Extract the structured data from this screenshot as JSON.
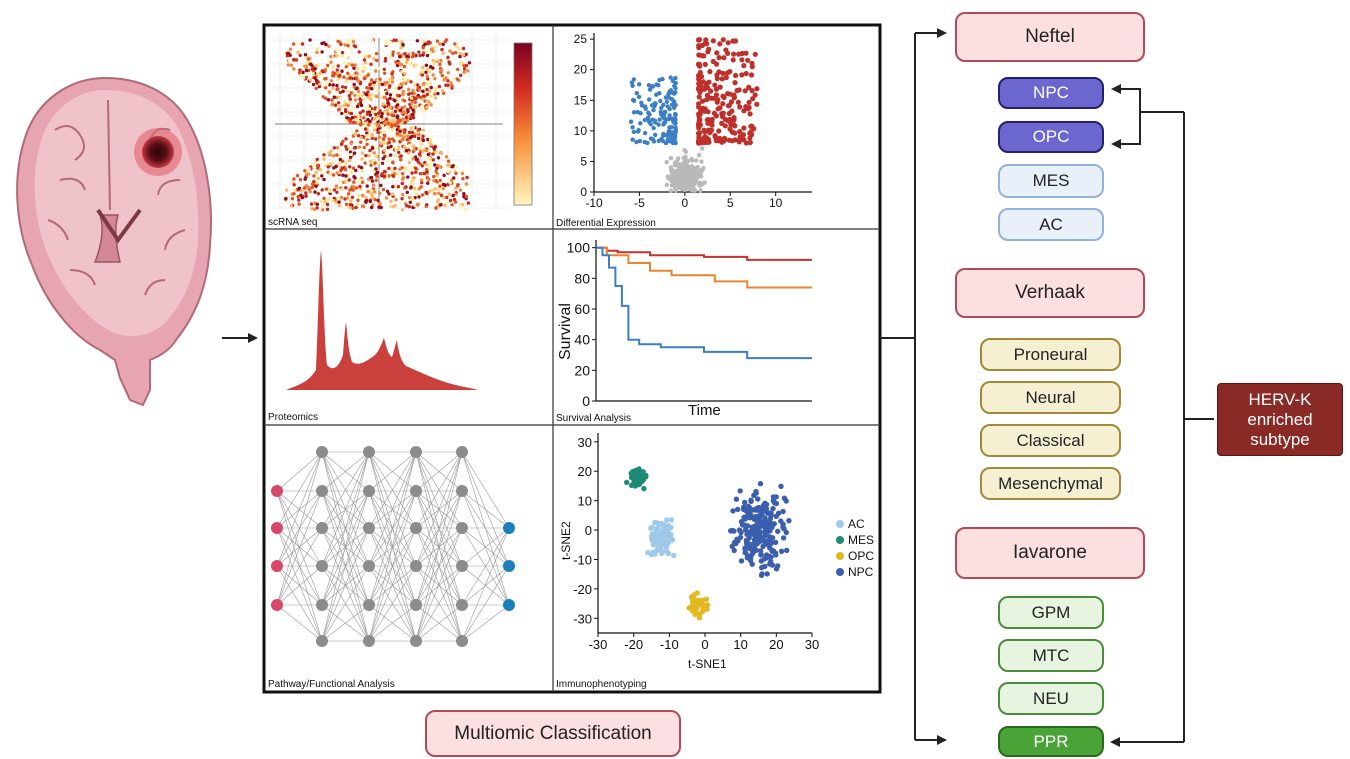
{
  "panels": {
    "scrna": "scRNA seq",
    "de": "Differential Expression",
    "proteomics": "Proteomics",
    "survival": "Survival Analysis",
    "pathway": "Pathway/Functional Analysis",
    "immuno": "Immunophenotyping"
  },
  "multiomic_label": "Multiomic Classification",
  "classifications": {
    "neftel": {
      "title": "Neftel",
      "subtypes": [
        "NPC",
        "OPC",
        "MES",
        "AC"
      ]
    },
    "verhaak": {
      "title": "Verhaak",
      "subtypes": [
        "Proneural",
        "Neural",
        "Classical",
        "Mesenchymal"
      ]
    },
    "iavarone": {
      "title": "Iavarone",
      "subtypes": [
        "GPM",
        "MTC",
        "NEU",
        "PPR"
      ]
    }
  },
  "herv": {
    "line1": "HERV-K",
    "line2": "enriched",
    "line3": "subtype"
  },
  "colors": {
    "up": "#c0302b",
    "down": "#3d7fc4",
    "ns": "#b9b9b9",
    "protein": "#c9403c",
    "curve_red": "#c8312b",
    "curve_orange": "#e8862f",
    "curve_blue": "#3a7fc4",
    "node_in": "#d6476a",
    "node_hidden": "#8c8c8c",
    "node_out": "#1a7fbb",
    "AC": "#9fc9ea",
    "MES": "#1d8a76",
    "OPC": "#e2b91f",
    "NPC": "#3b5fae"
  },
  "chart_data": [
    {
      "type": "scatter",
      "panel": "Differential Expression",
      "xlim": [
        -10,
        14
      ],
      "ylim": [
        0,
        26
      ],
      "xticks": [
        -10,
        -5,
        0,
        5,
        10
      ],
      "yticks": [
        0,
        5,
        10,
        15,
        20,
        25
      ],
      "series": [
        {
          "name": "",
          "points_approx": "upregulated: x 1.5 to 8, y 8 to 26"
        },
        {
          "name": "",
          "points_approx": "downregulated: x -6 to -1, y 8 to 19"
        },
        {
          "name": "",
          "points_approx": "not significant: x -4 to 4, y 0 to 9"
        }
      ]
    },
    {
      "type": "line",
      "panel": "Survival Analysis",
      "ylabel": "Survival",
      "xlabel": "Time",
      "ylim": [
        0,
        105
      ],
      "yticks": [
        0,
        20,
        40,
        60,
        80,
        100
      ],
      "series": [
        {
          "name": "",
          "x": [
            0,
            5,
            10,
            25,
            50,
            70,
            100
          ],
          "y": [
            100,
            98,
            97,
            95,
            94,
            92,
            92
          ]
        },
        {
          "name": "",
          "x": [
            0,
            5,
            15,
            25,
            35,
            55,
            70,
            100
          ],
          "y": [
            100,
            95,
            90,
            85,
            82,
            78,
            74,
            74
          ]
        },
        {
          "name": "",
          "x": [
            0,
            3,
            6,
            9,
            12,
            15,
            20,
            30,
            50,
            70,
            100
          ],
          "y": [
            100,
            95,
            87,
            75,
            62,
            40,
            37,
            35,
            32,
            28,
            28
          ]
        }
      ]
    },
    {
      "type": "scatter",
      "panel": "Immunophenotyping",
      "xlabel": "t-SNE1",
      "ylabel": "t-SNE2",
      "xlim": [
        -30,
        30
      ],
      "ylim": [
        -35,
        33
      ],
      "xticks": [
        -30,
        -20,
        -10,
        0,
        10,
        20,
        30
      ],
      "yticks": [
        -30,
        -20,
        -10,
        0,
        10,
        20,
        30
      ],
      "legend": "right",
      "series": [
        {
          "name": "AC",
          "center": [
            -12,
            -3
          ]
        },
        {
          "name": "MES",
          "center": [
            -19,
            18
          ]
        },
        {
          "name": "OPC",
          "center": [
            -2,
            -26
          ]
        },
        {
          "name": "NPC",
          "center": [
            15,
            0
          ]
        }
      ]
    }
  ]
}
